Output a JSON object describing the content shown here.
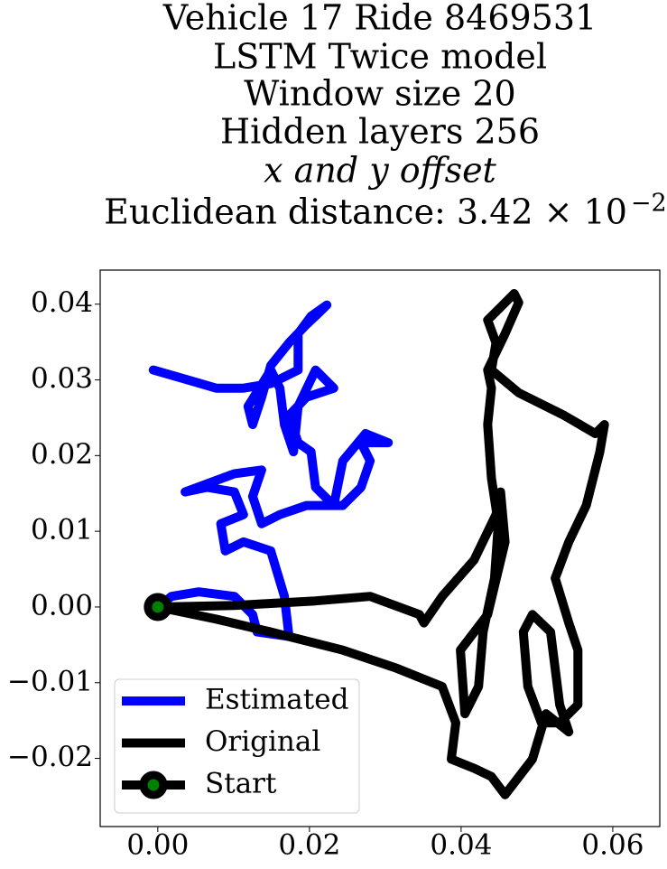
{
  "chart_data": {
    "type": "line",
    "title_lines": [
      "Vehicle 17 Ride 8469531",
      "LSTM Twice model",
      "Window size 20",
      "Hidden layers 256",
      "x and y offset"
    ],
    "distance_label": "Euclidean distance: 3.42 × 10",
    "distance_exponent": "−2",
    "xlim": [
      -0.0076,
      0.0662
    ],
    "ylim": [
      -0.029,
      0.0445
    ],
    "xticks": [
      {
        "value": 0,
        "label": "0.00"
      },
      {
        "value": 0.02,
        "label": "0.02"
      },
      {
        "value": 0.04,
        "label": "0.04"
      },
      {
        "value": 0.06,
        "label": "0.06"
      }
    ],
    "yticks": [
      {
        "value": -0.02,
        "label": "−0.02"
      },
      {
        "value": -0.01,
        "label": "−0.01"
      },
      {
        "value": 0,
        "label": "0.00"
      },
      {
        "value": 0.01,
        "label": "0.01"
      },
      {
        "value": 0.02,
        "label": "0.02"
      },
      {
        "value": 0.03,
        "label": "0.03"
      },
      {
        "value": 0.04,
        "label": "0.04"
      }
    ],
    "legend": "lower left",
    "series": [
      {
        "name": "Estimated",
        "color": "#0000ff",
        "x": [
          0,
          0.0018,
          0.0054,
          0.0101,
          0.0125,
          0.0131,
          0.0173,
          0.0167,
          0.0149,
          0.0113,
          0.0089,
          0.0083,
          0.0113,
          0.0101,
          0.0065,
          0.0036,
          0.0101,
          0.0137,
          0.0125,
          0.0137,
          0.0161,
          0.0196,
          0.0244,
          0.0268,
          0.028,
          0.0268,
          0.0304,
          0.0274,
          0.0244,
          0.0232,
          0.0208,
          0.0202,
          0.0185,
          0.0173,
          0.0196,
          0.0232,
          0.0208,
          0.0185,
          0.0179,
          0.0167,
          0.0161,
          0.0149,
          0.0119,
          0.0125,
          0.0137,
          0.0149,
          0.0173,
          0.0196,
          0.0214,
          0.0223,
          0.0202,
          0.0185,
          0.0185,
          0.0149,
          0.0113,
          0.0077,
          0.0036,
          -0.0006
        ],
        "y": [
          0,
          0.0014,
          0.002,
          0.0014,
          -0.001,
          -0.0033,
          -0.0039,
          0.0014,
          0.0074,
          0.0086,
          0.0074,
          0.011,
          0.0122,
          0.0152,
          0.0158,
          0.0152,
          0.0176,
          0.0181,
          0.0146,
          0.011,
          0.0122,
          0.0134,
          0.0134,
          0.0158,
          0.0193,
          0.0217,
          0.0217,
          0.0229,
          0.0193,
          0.0134,
          0.0158,
          0.0205,
          0.0217,
          0.0253,
          0.0277,
          0.0289,
          0.0313,
          0.0265,
          0.0205,
          0.0241,
          0.0289,
          0.0313,
          0.0265,
          0.0241,
          0.0277,
          0.0319,
          0.0349,
          0.0373,
          0.039,
          0.0399,
          0.0384,
          0.0361,
          0.0313,
          0.0295,
          0.0289,
          0.0289,
          0.0301,
          0.0313
        ]
      },
      {
        "name": "Original",
        "color": "#000000",
        "x": [
          0,
          0.0101,
          0.0208,
          0.028,
          0.0345,
          0.0351,
          0.0375,
          0.0417,
          0.0446,
          0.0452,
          0.0458,
          0.0435,
          0.0399,
          0.0405,
          0.0423,
          0.0429,
          0.0444,
          0.0449,
          0.044,
          0.0435,
          0.044,
          0.0435,
          0.0458,
          0.0476,
          0.047,
          0.0452,
          0.0435,
          0.0446,
          0.044,
          0.0476,
          0.0536,
          0.0577,
          0.0589,
          0.0583,
          0.0565,
          0.0542,
          0.0524,
          0.0542,
          0.0554,
          0.0554,
          0.053,
          0.0506,
          0.0488,
          0.0482,
          0.0494,
          0.0518,
          0.053,
          0.0542,
          0.0512,
          0.0494,
          0.0458,
          0.044,
          0.0417,
          0.0387,
          0.0393,
          0.0375,
          0.0315,
          0.0244,
          0.0149,
          0.0077,
          0
        ],
        "y": [
          0,
          0.0002,
          0.0008,
          0.0014,
          -0.001,
          -0.0021,
          0.0014,
          0.0062,
          0.0122,
          0.0152,
          0.0086,
          -0.001,
          -0.0057,
          -0.0141,
          -0.0105,
          -0.0033,
          0.0038,
          0.011,
          0.017,
          0.0241,
          0.0289,
          0.0313,
          0.0361,
          0.0402,
          0.0414,
          0.0396,
          0.0379,
          0.0349,
          0.0313,
          0.0283,
          0.0253,
          0.0229,
          0.0241,
          0.0205,
          0.0134,
          0.0086,
          0.0038,
          -0.0021,
          -0.0057,
          -0.0129,
          -0.0153,
          -0.0153,
          -0.0105,
          -0.0033,
          -0.001,
          -0.0033,
          -0.0129,
          -0.0165,
          -0.0141,
          -0.0201,
          -0.0248,
          -0.0224,
          -0.0213,
          -0.0201,
          -0.0153,
          -0.0105,
          -0.0081,
          -0.0057,
          -0.0033,
          -0.0016,
          0
        ]
      },
      {
        "name": "Start",
        "color": "#000000",
        "marker_color": "#008000",
        "x": [
          0
        ],
        "y": [
          0
        ]
      }
    ]
  }
}
